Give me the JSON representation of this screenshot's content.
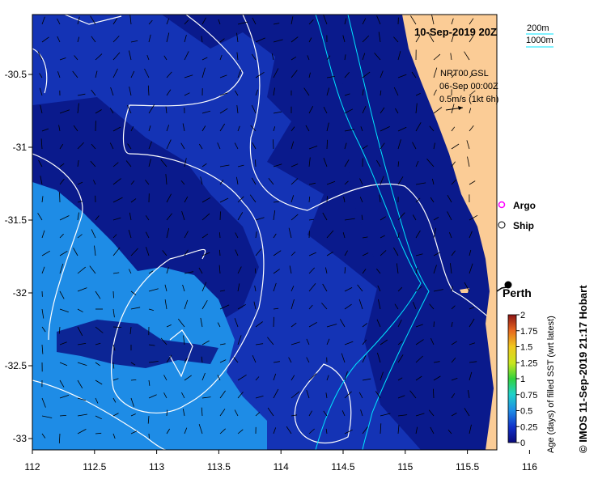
{
  "title": "10-Sep-2019 20Z",
  "isobath_legend": {
    "shallow": "200m",
    "deep": "1000m"
  },
  "current_info": {
    "product": "NRT00 GSL",
    "date": "06-Sep 00:00Z",
    "scale": "0.5m/s (1kt 6h)"
  },
  "legend": {
    "argo": "Argo",
    "ship": "Ship"
  },
  "city": "Perth",
  "colorbar": {
    "label": "Age (days) of filled SST (wrt latest)",
    "ticks": [
      "0",
      "0.25",
      "0.5",
      "0.75",
      "1",
      "1.25",
      "1.5",
      "1.75",
      "2"
    ]
  },
  "credit": "© IMOS 11-Sep-2019 21:17 Hobart",
  "axes": {
    "x_ticks": [
      "112",
      "112.5",
      "113",
      "113.5",
      "114",
      "114.5",
      "115",
      "115.5",
      "116"
    ],
    "y_ticks": [
      "-30.5",
      "-31",
      "-31.5",
      "-32",
      "-32.5",
      "-33"
    ]
  },
  "colors": {
    "sea_deep": "#0a1a8c",
    "sea_mid": "#1433b5",
    "sea_light": "#1e8ce6",
    "land": "#fbcc96",
    "isobath_200": "#00e5ff",
    "isobath_1000": "#00e5ff",
    "contour": "#ffffff"
  }
}
